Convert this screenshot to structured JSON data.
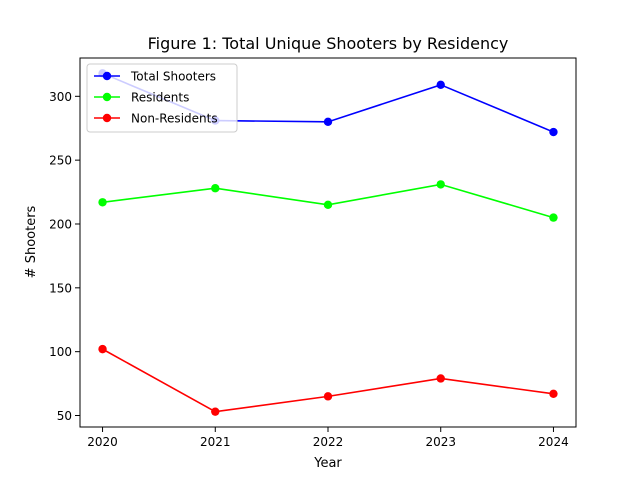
{
  "chart_data": {
    "type": "line",
    "title": "Figure 1: Total Unique Shooters by Residency",
    "xlabel": "Year",
    "ylabel": "# Shooters",
    "x": [
      2020,
      2021,
      2022,
      2023,
      2024
    ],
    "xticks": [
      "2020",
      "2021",
      "2022",
      "2023",
      "2024"
    ],
    "yticks": [
      "50",
      "100",
      "150",
      "200",
      "250",
      "300"
    ],
    "ylim": [
      41,
      330
    ],
    "grid": false,
    "legend_position": "top-left",
    "series": [
      {
        "name": "Total Shooters",
        "color": "#0000ff",
        "values": [
          318,
          281,
          280,
          309,
          272
        ]
      },
      {
        "name": "Residents",
        "color": "#00ff00",
        "values": [
          217,
          228,
          215,
          231,
          205
        ]
      },
      {
        "name": "Non-Residents",
        "color": "#ff0000",
        "values": [
          102,
          53,
          65,
          79,
          67
        ]
      }
    ]
  }
}
